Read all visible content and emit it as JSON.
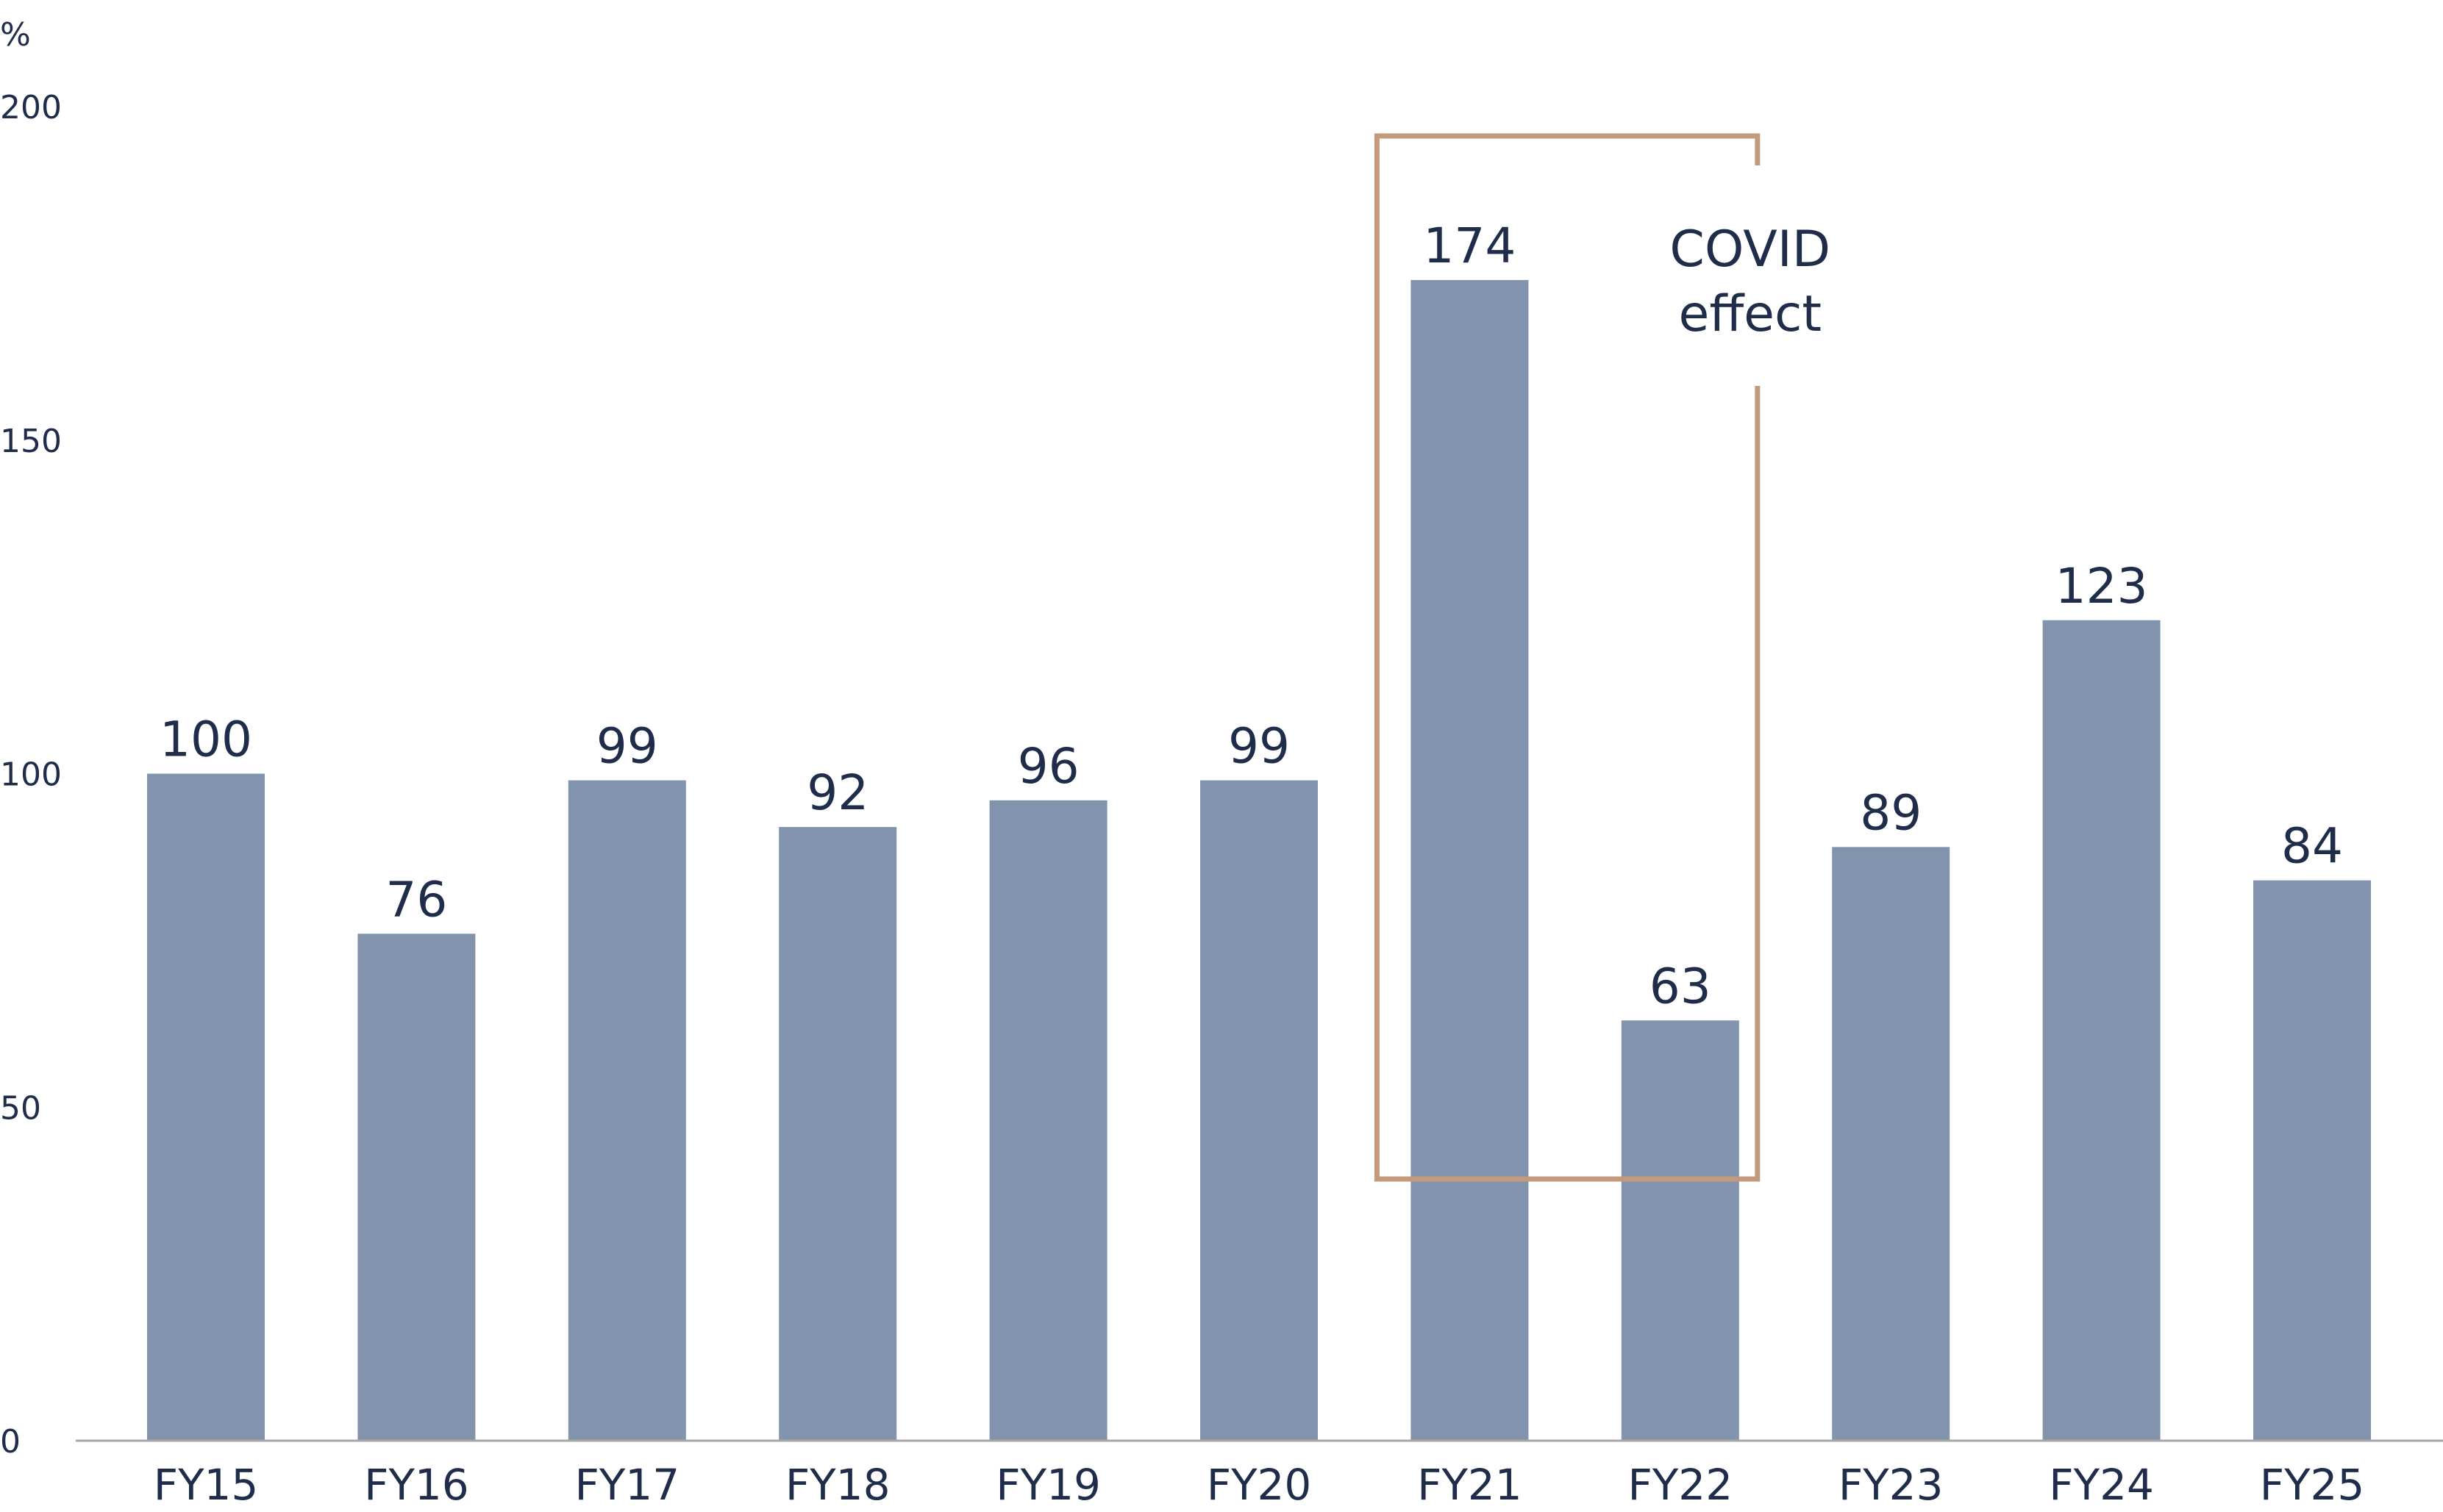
{
  "chart_data": {
    "type": "bar",
    "title": "",
    "xlabel": "",
    "ylabel": "%",
    "ylim": [
      0,
      200
    ],
    "yticks": [
      0,
      50,
      100,
      150,
      200
    ],
    "grid": false,
    "categories": [
      "FY15",
      "FY16",
      "FY17",
      "FY18",
      "FY19",
      "FY20",
      "FY21",
      "FY22",
      "FY23",
      "FY24",
      "FY25"
    ],
    "values": [
      100,
      76,
      99,
      92,
      96,
      99,
      174,
      63,
      89,
      123,
      84
    ],
    "data_labels": [
      "100",
      "76",
      "99",
      "92",
      "96",
      "99",
      "174",
      "63",
      "89",
      "123",
      "84"
    ],
    "annotation": {
      "text_lines": [
        "COVID",
        "effect"
      ],
      "categories": [
        "FY21",
        "FY22"
      ]
    },
    "colors": {
      "bar": "#8293ad",
      "text": "#1f2d4a",
      "annotation_box": "#c49a7c",
      "axis": "#a8a8a8"
    }
  }
}
